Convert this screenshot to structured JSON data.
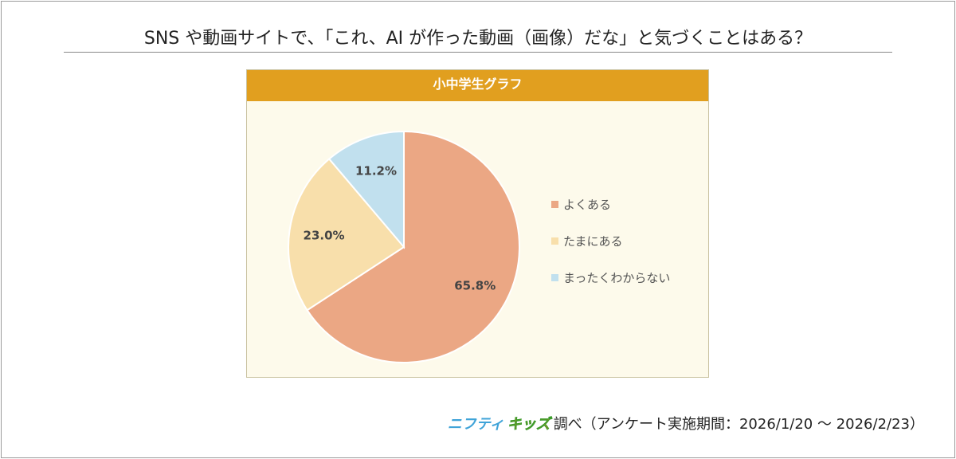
{
  "title": "SNS や動画サイトで、「これ、AI が作った動画（画像）だな」と気づくことはある？",
  "chart_data": {
    "type": "pie",
    "title": "小中学生グラフ",
    "categories": [
      "よくある",
      "たまにある",
      "まったくわからない"
    ],
    "values": [
      65.8,
      23.0,
      11.2
    ],
    "labels": [
      "65.8%",
      "23.0%",
      "11.2%"
    ],
    "colors": [
      "#eba784",
      "#f8dfab",
      "#c1e0ee"
    ],
    "legend": "right"
  },
  "footer": {
    "logo_part1": "ニフティ",
    "logo_part2": "キッズ",
    "text": "調べ（アンケート実施期間：2026/1/20 〜 2026/2/23）"
  }
}
